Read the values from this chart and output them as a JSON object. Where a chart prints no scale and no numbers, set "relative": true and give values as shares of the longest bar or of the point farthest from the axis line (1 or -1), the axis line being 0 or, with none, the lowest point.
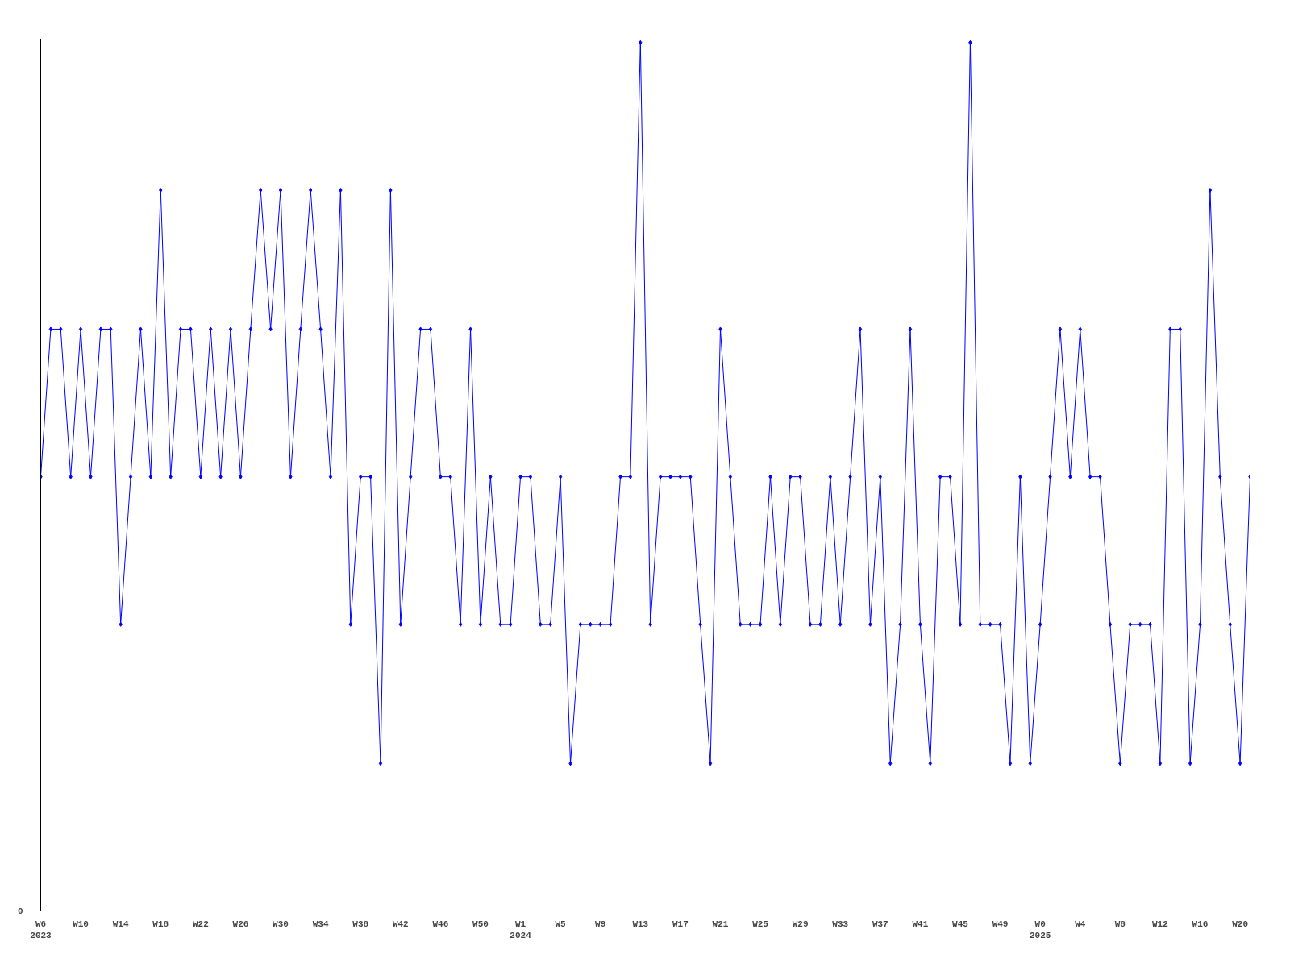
{
  "chart_data": {
    "type": "line",
    "relative": true,
    "marker": "diamond",
    "line_style": "solid",
    "grid": false,
    "categories": [
      "W6\n2023",
      null,
      null,
      null,
      "W10",
      null,
      null,
      null,
      "W14",
      null,
      null,
      null,
      "W18",
      null,
      null,
      null,
      "W22",
      null,
      null,
      null,
      "W26",
      null,
      null,
      null,
      "W30",
      null,
      null,
      null,
      "W34",
      null,
      null,
      null,
      "W38",
      null,
      null,
      null,
      "W42",
      null,
      null,
      null,
      "W46",
      null,
      null,
      null,
      "W50",
      null,
      null,
      null,
      "W1\n2024",
      null,
      null,
      null,
      "W5",
      null,
      null,
      null,
      "W9",
      null,
      null,
      null,
      "W13",
      null,
      null,
      null,
      "W17",
      null,
      null,
      null,
      "W21",
      null,
      null,
      null,
      "W25",
      null,
      null,
      null,
      "W29",
      null,
      null,
      null,
      "W33",
      null,
      null,
      null,
      "W37",
      null,
      null,
      null,
      "W41",
      null,
      null,
      null,
      "W45",
      null,
      null,
      null,
      "W49",
      null,
      null,
      null,
      "W0\n2025",
      null,
      null,
      null,
      "W4",
      null,
      null,
      null,
      "W8",
      null,
      null,
      null,
      "W12",
      null,
      null,
      null,
      "W16",
      null,
      null,
      null,
      "W20",
      null
    ],
    "series": [
      {
        "color": "#0000ff",
        "values": [
          0.5,
          0.67,
          0.67,
          0.5,
          0.67,
          0.5,
          0.67,
          0.67,
          0.33,
          0.5,
          0.67,
          0.5,
          0.83,
          0.5,
          0.67,
          0.67,
          0.5,
          0.67,
          0.5,
          0.67,
          0.5,
          0.67,
          0.83,
          0.67,
          0.83,
          0.5,
          0.67,
          0.83,
          0.67,
          0.5,
          0.83,
          0.33,
          0.5,
          0.5,
          0.17,
          0.83,
          0.33,
          0.5,
          0.67,
          0.67,
          0.5,
          0.5,
          0.33,
          0.67,
          0.33,
          0.5,
          0.33,
          0.33,
          0.5,
          0.5,
          0.33,
          0.33,
          0.5,
          0.17,
          0.33,
          0.33,
          0.33,
          0.33,
          0.5,
          0.5,
          1,
          0.33,
          0.5,
          0.5,
          0.5,
          0.5,
          0.33,
          0.17,
          0.67,
          0.5,
          0.33,
          0.33,
          0.33,
          0.5,
          0.33,
          0.5,
          0.5,
          0.33,
          0.33,
          0.5,
          0.33,
          0.5,
          0.67,
          0.33,
          0.5,
          0.17,
          0.33,
          0.67,
          0.33,
          0.17,
          0.5,
          0.5,
          0.33,
          1,
          0.33,
          0.33,
          0.33,
          0.17,
          0.5,
          0.17,
          0.33,
          0.5,
          0.67,
          0.5,
          0.67,
          0.5,
          0.5,
          0.33,
          0.17,
          0.33,
          0.33,
          0.33,
          0.17,
          0.67,
          0.67,
          0.17,
          0.33,
          0.83,
          0.5,
          0.33,
          0.17,
          0.5
        ]
      }
    ],
    "annotations": [
      "0"
    ]
  }
}
